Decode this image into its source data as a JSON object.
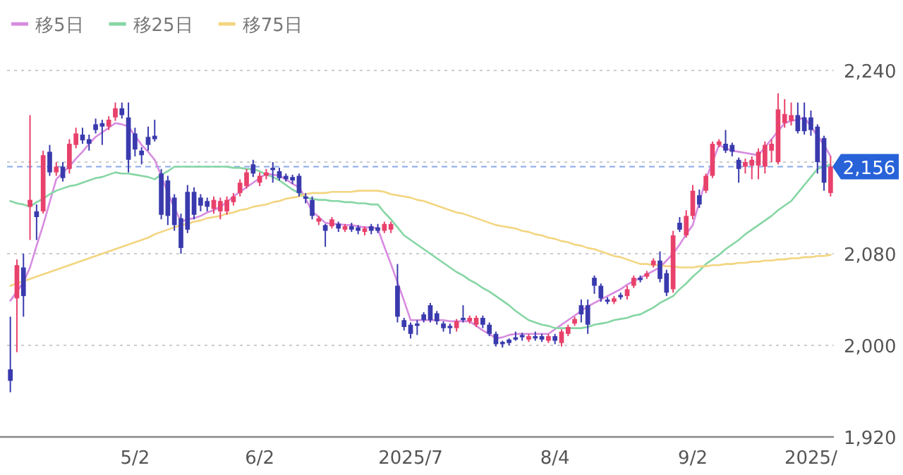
{
  "chart_data": {
    "type": "candlestick",
    "categories": [
      null,
      null,
      null,
      null,
      null,
      null,
      null,
      null,
      null,
      null,
      null,
      null,
      null,
      null,
      null,
      null,
      null,
      null,
      null,
      "5/2",
      null,
      null,
      null,
      null,
      null,
      null,
      null,
      null,
      null,
      null,
      null,
      null,
      null,
      null,
      null,
      null,
      null,
      null,
      "6/2",
      null,
      null,
      null,
      null,
      null,
      null,
      null,
      null,
      null,
      null,
      null,
      null,
      null,
      null,
      null,
      null,
      null,
      null,
      null,
      null,
      null,
      null,
      "2025/7",
      null,
      null,
      null,
      null,
      null,
      null,
      null,
      null,
      null,
      null,
      null,
      null,
      null,
      null,
      null,
      null,
      null,
      null,
      null,
      null,
      null,
      "8/4",
      null,
      null,
      null,
      null,
      null,
      null,
      null,
      null,
      null,
      null,
      null,
      null,
      null,
      null,
      null,
      null,
      null,
      null,
      null,
      null,
      "9/2",
      null,
      null,
      null,
      null,
      null,
      null,
      null,
      null,
      null,
      null,
      null,
      null,
      null,
      null,
      null,
      null,
      null,
      "2025/",
      null,
      null,
      null
    ],
    "ohlc": [
      [
        1979,
        2025,
        1959,
        1969
      ],
      [
        2041,
        2075,
        1994,
        2070
      ],
      [
        2068,
        2080,
        2025,
        2043
      ],
      [
        2121,
        2201,
        2092,
        2127
      ],
      [
        2117,
        2123,
        2092,
        2112
      ],
      [
        2117,
        2170,
        2115,
        2166
      ],
      [
        2169,
        2175,
        2148,
        2151
      ],
      [
        2151,
        2160,
        2148,
        2156
      ],
      [
        2156,
        2160,
        2143,
        2146
      ],
      [
        2154,
        2180,
        2150,
        2176
      ],
      [
        2175,
        2190,
        2172,
        2185
      ],
      [
        2184,
        2190,
        2176,
        2179
      ],
      [
        2180,
        2184,
        2170,
        2176
      ],
      [
        2193,
        2198,
        2185,
        2188
      ],
      [
        2194,
        2197,
        2175,
        2191
      ],
      [
        2191,
        2200,
        2188,
        2197
      ],
      [
        2199,
        2212,
        2196,
        2207
      ],
      [
        2207,
        2212,
        2198,
        2201
      ],
      [
        2199,
        2212,
        2151,
        2162
      ],
      [
        2185,
        2190,
        2165,
        2171
      ],
      [
        2170,
        2173,
        2158,
        2166
      ],
      [
        2182,
        2191,
        2170,
        2175
      ],
      [
        2183,
        2197,
        2178,
        2180
      ],
      [
        2150,
        2154,
        2110,
        2114
      ],
      [
        2144,
        2148,
        2105,
        2113
      ],
      [
        2129,
        2132,
        2100,
        2105
      ],
      [
        2111,
        2115,
        2080,
        2085
      ],
      [
        2134,
        2140,
        2098,
        2101
      ],
      [
        2134,
        2138,
        2110,
        2114
      ],
      [
        2129,
        2132,
        2117,
        2122
      ],
      [
        2126,
        2129,
        2117,
        2121
      ],
      [
        2119,
        2130,
        2115,
        2127
      ],
      [
        2117,
        2129,
        2110,
        2126
      ],
      [
        2117,
        2130,
        2114,
        2127
      ],
      [
        2125,
        2133,
        2122,
        2130
      ],
      [
        2133,
        2145,
        2130,
        2142
      ],
      [
        2139,
        2154,
        2137,
        2151
      ],
      [
        2158,
        2162,
        2147,
        2150
      ],
      [
        2142,
        2151,
        2139,
        2148
      ],
      [
        2148,
        2154,
        2145,
        2151
      ],
      [
        2155,
        2160,
        2142,
        2153
      ],
      [
        2152,
        2155,
        2144,
        2146
      ],
      [
        2148,
        2150,
        2143,
        2145
      ],
      [
        2147,
        2149,
        2141,
        2144
      ],
      [
        2148,
        2150,
        2130,
        2133
      ],
      [
        2130,
        2133,
        2124,
        2128
      ],
      [
        2127,
        2130,
        2110,
        2113
      ],
      [
        2108,
        2113,
        2105,
        2111
      ],
      [
        2105,
        2106,
        2086,
        2100
      ],
      [
        2104,
        2112,
        2102,
        2110
      ],
      [
        2106,
        2108,
        2099,
        2102
      ],
      [
        2101,
        2106,
        2099,
        2104
      ],
      [
        2104,
        2107,
        2099,
        2101
      ],
      [
        2103,
        2105,
        2097,
        2100
      ],
      [
        2099,
        2104,
        2096,
        2102
      ],
      [
        2104,
        2106,
        2097,
        2100
      ],
      [
        2103,
        2106,
        2098,
        2100
      ],
      [
        2100,
        2108,
        2098,
        2106
      ],
      [
        2101,
        2108,
        2098,
        2106
      ],
      [
        2052,
        2071,
        2020,
        2025
      ],
      [
        2022,
        2024,
        2013,
        2016
      ],
      [
        2018,
        2020,
        2006,
        2010
      ],
      [
        2019,
        2022,
        2009,
        2017
      ],
      [
        2027,
        2029,
        2020,
        2022
      ],
      [
        2035,
        2037,
        2020,
        2022
      ],
      [
        2028,
        2030,
        2018,
        2021
      ],
      [
        2019,
        2021,
        2012,
        2015
      ],
      [
        2017,
        2019,
        2010,
        2015
      ],
      [
        2015,
        2023,
        2012,
        2021
      ],
      [
        2024,
        2035,
        2020,
        2022
      ],
      [
        2021,
        2026,
        2019,
        2024
      ],
      [
        2018,
        2026,
        2016,
        2024
      ],
      [
        2024,
        2026,
        2015,
        2018
      ],
      [
        2018,
        2020,
        2008,
        2010
      ],
      [
        2010,
        2012,
        1999,
        2001
      ],
      [
        2003,
        2004,
        1998,
        2001
      ],
      [
        2005,
        2006,
        2000,
        2002
      ],
      [
        2007,
        2012,
        2004,
        2005
      ],
      [
        2009,
        2011,
        2004,
        2007
      ],
      [
        2005,
        2010,
        2003,
        2008
      ],
      [
        2008,
        2012,
        2004,
        2006
      ],
      [
        2008,
        2010,
        2003,
        2005
      ],
      [
        2004,
        2010,
        2002,
        2008
      ],
      [
        2008,
        2010,
        2001,
        2004
      ],
      [
        2002,
        2014,
        1999,
        2012
      ],
      [
        2010,
        2018,
        2008,
        2016
      ],
      [
        2019,
        2025,
        2017,
        2023
      ],
      [
        2035,
        2040,
        2020,
        2027
      ],
      [
        2035,
        2040,
        2010,
        2018
      ],
      [
        2059,
        2061,
        2045,
        2052
      ],
      [
        2052,
        2054,
        2038,
        2041
      ],
      [
        2040,
        2042,
        2036,
        2038
      ],
      [
        2038,
        2043,
        2036,
        2041
      ],
      [
        2044,
        2046,
        2040,
        2042
      ],
      [
        2043,
        2052,
        2040,
        2049
      ],
      [
        2052,
        2061,
        2050,
        2059
      ],
      [
        2059,
        2061,
        2055,
        2057
      ],
      [
        2060,
        2065,
        2058,
        2063
      ],
      [
        2070,
        2076,
        2068,
        2074
      ],
      [
        2074,
        2082,
        2055,
        2058
      ],
      [
        2063,
        2066,
        2043,
        2046
      ],
      [
        2049,
        2100,
        2046,
        2096
      ],
      [
        2107,
        2112,
        2099,
        2101
      ],
      [
        2096,
        2118,
        2094,
        2113
      ],
      [
        2113,
        2140,
        2110,
        2135
      ],
      [
        2131,
        2136,
        2120,
        2123
      ],
      [
        2135,
        2150,
        2133,
        2148
      ],
      [
        2148,
        2178,
        2146,
        2176
      ],
      [
        2175,
        2180,
        2173,
        2178
      ],
      [
        2176,
        2188,
        2168,
        2170
      ],
      [
        2175,
        2177,
        2165,
        2169
      ],
      [
        2162,
        2164,
        2142,
        2154
      ],
      [
        2156,
        2163,
        2150,
        2160
      ],
      [
        2157,
        2165,
        2145,
        2162
      ],
      [
        2157,
        2172,
        2145,
        2169
      ],
      [
        2156,
        2178,
        2150,
        2175
      ],
      [
        2170,
        2180,
        2160,
        2176
      ],
      [
        2160,
        2220,
        2158,
        2206
      ],
      [
        2194,
        2215,
        2190,
        2202
      ],
      [
        2196,
        2212,
        2192,
        2201
      ],
      [
        2201,
        2212,
        2185,
        2187
      ],
      [
        2199,
        2212,
        2184,
        2187
      ],
      [
        2199,
        2205,
        2183,
        2188
      ],
      [
        2191,
        2193,
        2150,
        2160
      ],
      [
        2181,
        2183,
        2135,
        2142
      ],
      [
        2133,
        2165,
        2130,
        2156
      ]
    ],
    "series": [
      {
        "name": "移5日",
        "type": "line",
        "color": "#d78be0",
        "values": [
          2039,
          2047,
          2055,
          2068,
          2087,
          2105,
          2125,
          2145,
          2151,
          2156,
          2163,
          2169,
          2176,
          2182,
          2186,
          2190,
          2194,
          2193,
          2191,
          2183,
          2175,
          2169,
          2162,
          2148,
          2133,
          2120,
          2108,
          2110,
          2111,
          2113,
          2116,
          2118,
          2121,
          2125,
          2130,
          2134,
          2138,
          2142,
          2146,
          2150,
          2149,
          2148,
          2145,
          2141,
          2138,
          2128,
          2117,
          2112,
          2107,
          2106,
          2106,
          2105,
          2105,
          2104,
          2103,
          2103,
          2102,
          2086,
          2071,
          2055,
          2039,
          2022,
          2022,
          2022,
          2022,
          2022,
          2022,
          2021,
          2021,
          2021,
          2021,
          2017,
          2013,
          2010,
          2006,
          2007,
          2009,
          2010,
          2010,
          2010,
          2010,
          2010,
          2010,
          2014,
          2018,
          2022,
          2026,
          2030,
          2034,
          2037,
          2040,
          2043,
          2046,
          2049,
          2053,
          2056,
          2059,
          2062,
          2065,
          2068,
          2074,
          2080,
          2088,
          2097,
          2105,
          2125,
          2145,
          2160,
          2175,
          2172,
          2170,
          2169,
          2168,
          2167,
          2166,
          2173,
          2180,
          2187,
          2194,
          2196,
          2197,
          2199,
          2191,
          2183,
          2175,
          2165
        ]
      },
      {
        "name": "移25日",
        "type": "line",
        "color": "#86d6a4",
        "values": [
          2126,
          2124,
          2123,
          2121,
          2125,
          2128,
          2132,
          2135,
          2137,
          2139,
          2140,
          2142,
          2144,
          2146,
          2147,
          2149,
          2151,
          2150,
          2150,
          2149,
          2148,
          2147,
          2145,
          2149,
          2152,
          2156,
          2156,
          2156,
          2156,
          2156,
          2156,
          2156,
          2156,
          2156,
          2155,
          2155,
          2154,
          2154,
          2152,
          2149,
          2147,
          2144,
          2140,
          2136,
          2133,
          2129,
          2128,
          2127,
          2127,
          2126,
          2126,
          2125,
          2125,
          2124,
          2124,
          2123,
          2123,
          2116,
          2110,
          2103,
          2096,
          2092,
          2088,
          2084,
          2080,
          2076,
          2072,
          2068,
          2064,
          2061,
          2057,
          2054,
          2050,
          2047,
          2043,
          2039,
          2035,
          2030,
          2026,
          2022,
          2020,
          2018,
          2017,
          2015,
          2015,
          2015,
          2015,
          2015,
          2016,
          2018,
          2019,
          2020,
          2022,
          2023,
          2024,
          2026,
          2027,
          2030,
          2033,
          2037,
          2040,
          2043,
          2049,
          2054,
          2060,
          2065,
          2071,
          2075,
          2079,
          2084,
          2088,
          2092,
          2097,
          2101,
          2105,
          2109,
          2113,
          2118,
          2122,
          2126,
          2133,
          2140,
          2147,
          2154,
          2156,
          2158
        ]
      },
      {
        "name": "移75日",
        "type": "line",
        "color": "#f3d580",
        "values": [
          2052,
          2054,
          2056,
          2058,
          2060,
          2062,
          2064,
          2066,
          2068,
          2070,
          2072,
          2074,
          2076,
          2078,
          2080,
          2082,
          2084,
          2086,
          2088,
          2090,
          2092,
          2094,
          2097,
          2099,
          2101,
          2103,
          2105,
          2106,
          2108,
          2109,
          2111,
          2112,
          2113,
          2115,
          2116,
          2118,
          2119,
          2121,
          2122,
          2123,
          2125,
          2126,
          2128,
          2129,
          2130,
          2132,
          2133,
          2133,
          2133,
          2134,
          2134,
          2134,
          2134,
          2135,
          2135,
          2135,
          2135,
          2134,
          2132,
          2131,
          2130,
          2129,
          2127,
          2126,
          2124,
          2122,
          2120,
          2118,
          2116,
          2115,
          2113,
          2111,
          2109,
          2107,
          2105,
          2104,
          2103,
          2102,
          2100,
          2099,
          2097,
          2096,
          2094,
          2093,
          2091,
          2090,
          2088,
          2087,
          2085,
          2084,
          2082,
          2080,
          2078,
          2077,
          2075,
          2073,
          2071,
          2071,
          2070,
          2070,
          2069,
          2069,
          2068,
          2068,
          2068,
          2069,
          2069,
          2070,
          2070,
          2071,
          2071,
          2072,
          2072,
          2073,
          2073,
          2074,
          2074,
          2075,
          2075,
          2076,
          2076,
          2077,
          2077,
          2078,
          2078,
          2079
        ]
      }
    ],
    "ylim": [
      1920,
      2240
    ],
    "yticks": [
      {
        "value": 1920,
        "label": "1,920"
      },
      {
        "value": 2000,
        "label": "2,000"
      },
      {
        "value": 2080,
        "label": "2,080"
      },
      {
        "value": 2160,
        "label": null
      },
      {
        "value": 2240,
        "label": "2,240"
      }
    ],
    "grid": "y",
    "legend": "top left",
    "ref_lines": [
      {
        "axis": "y",
        "value": 2156,
        "label": "2,156",
        "color": "#2762d8",
        "line_style": "dashed"
      }
    ]
  }
}
